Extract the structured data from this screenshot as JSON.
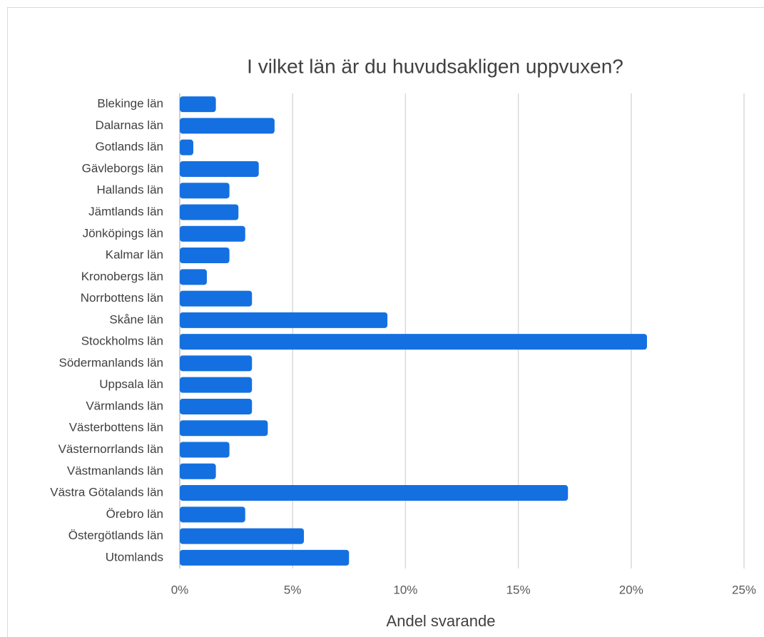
{
  "chart_data": {
    "type": "bar",
    "orientation": "horizontal",
    "title": "I vilket län är du huvudsakligen uppvuxen?",
    "x_label": "Andel svarande",
    "categories": [
      "Blekinge län",
      "Dalarnas län",
      "Gotlands län",
      "Gävleborgs län",
      "Hallands län",
      "Jämtlands län",
      "Jönköpings län",
      "Kalmar län",
      "Kronobergs län",
      "Norrbottens län",
      "Skåne län",
      "Stockholms län",
      "Södermanlands län",
      "Uppsala län",
      "Värmlands län",
      "Västerbottens län",
      "Västernorrlands län",
      "Västmanlands län",
      "Västra Götalands län",
      "Örebro län",
      "Östergötlands län",
      "Utomlands"
    ],
    "values": [
      1.6,
      4.2,
      0.6,
      3.5,
      2.2,
      2.6,
      2.9,
      2.2,
      1.2,
      3.2,
      9.2,
      20.7,
      3.2,
      3.2,
      3.2,
      3.9,
      2.2,
      1.6,
      17.2,
      2.9,
      5.5,
      7.5
    ],
    "color": "#1470e0",
    "xlim": [
      0,
      25
    ],
    "xticks": [
      {
        "value": 0,
        "label": "0%"
      },
      {
        "value": 5,
        "label": "5%"
      },
      {
        "value": 10,
        "label": "10%"
      },
      {
        "value": 15,
        "label": "15%"
      },
      {
        "value": 20,
        "label": "20%"
      },
      {
        "value": 25,
        "label": "25%"
      }
    ],
    "grid": true
  }
}
